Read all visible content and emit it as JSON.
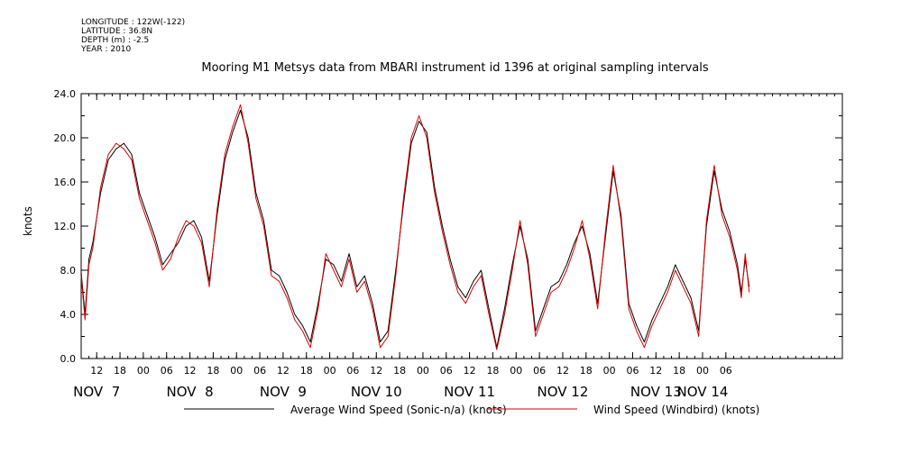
{
  "metadata": {
    "lines": [
      "LONGITUDE : 122W(-122)",
      "LATITUDE : 36.8N",
      "DEPTH (m) : -2.5",
      "YEAR : 2010"
    ]
  },
  "chart_data": {
    "type": "line",
    "title": "Mooring M1 Metsys data from MBARI instrument id 1396 at original sampling intervals",
    "ylabel": "knots",
    "xlabel": "",
    "ylim": [
      0,
      24
    ],
    "yticks": [
      "0.0",
      "4.0",
      "8.0",
      "12.0",
      "16.0",
      "20.0",
      "24.0"
    ],
    "x_range_hours_label": "Nov 6 08:00 to Nov 14 12:00 (hour ticks every 6 h)",
    "hour_tick_labels": [
      {
        "t": "Nov 6 12:00",
        "label": "12"
      },
      {
        "t": "Nov 6 18:00",
        "label": "18"
      },
      {
        "t": "Nov 7 00:00",
        "label": "00"
      },
      {
        "t": "Nov 7 06:00",
        "label": "06"
      },
      {
        "t": "Nov 7 12:00",
        "label": "12"
      },
      {
        "t": "Nov 7 18:00",
        "label": "18"
      },
      {
        "t": "Nov 8 00:00",
        "label": "00"
      },
      {
        "t": "Nov 8 06:00",
        "label": "06"
      },
      {
        "t": "Nov 8 12:00",
        "label": "12"
      },
      {
        "t": "Nov 8 18:00",
        "label": "18"
      },
      {
        "t": "Nov 9 00:00",
        "label": "00"
      },
      {
        "t": "Nov 9 06:00",
        "label": "06"
      },
      {
        "t": "Nov 9 12:00",
        "label": "12"
      },
      {
        "t": "Nov 9 18:00",
        "label": "18"
      },
      {
        "t": "Nov 10 00:00",
        "label": "00"
      },
      {
        "t": "Nov 10 06:00",
        "label": "06"
      },
      {
        "t": "Nov 10 12:00",
        "label": "12"
      },
      {
        "t": "Nov 10 18:00",
        "label": "18"
      },
      {
        "t": "Nov 11 00:00",
        "label": "00"
      },
      {
        "t": "Nov 11 06:00",
        "label": "06"
      },
      {
        "t": "Nov 11 12:00",
        "label": "12"
      },
      {
        "t": "Nov 11 18:00",
        "label": "18"
      },
      {
        "t": "Nov 12 00:00",
        "label": "00"
      },
      {
        "t": "Nov 12 06:00",
        "label": "06"
      },
      {
        "t": "Nov 12 12:00",
        "label": "12"
      },
      {
        "t": "Nov 12 18:00",
        "label": "18"
      },
      {
        "t": "Nov 13 00:00",
        "label": "00"
      },
      {
        "t": "Nov 13 06:00",
        "label": "06"
      }
    ],
    "day_labels": [
      {
        "t": "Nov 6 12:00",
        "label": "NOV  7"
      },
      {
        "t": "Nov 7 12:00",
        "label": "NOV  8"
      },
      {
        "t": "Nov 8 12:00",
        "label": "NOV  9"
      },
      {
        "t": "Nov 9 12:00",
        "label": "NOV 10"
      },
      {
        "t": "Nov 10 12:00",
        "label": "NOV 11"
      },
      {
        "t": "Nov 11 12:00",
        "label": "NOV 12"
      },
      {
        "t": "Nov 12 12:00",
        "label": "NOV 13"
      },
      {
        "t": "Nov 13 00:00",
        "label": "NOV 14"
      }
    ],
    "series": [
      {
        "name": "Average Wind Speed (Sonic-n/a) (knots)",
        "color": "#000000",
        "points": [
          [
            "Nov 6 08:00",
            7.8
          ],
          [
            "Nov 6 09:00",
            4.0
          ],
          [
            "Nov 6 10:00",
            9.0
          ],
          [
            "Nov 6 11:00",
            10.5
          ],
          [
            "Nov 6 13:00",
            15.0
          ],
          [
            "Nov 6 15:00",
            18.0
          ],
          [
            "Nov 6 17:00",
            19.0
          ],
          [
            "Nov 6 19:00",
            19.5
          ],
          [
            "Nov 6 21:00",
            18.5
          ],
          [
            "Nov 6 23:00",
            15.0
          ],
          [
            "Nov 7 01:00",
            13.0
          ],
          [
            "Nov 7 03:00",
            11.0
          ],
          [
            "Nov 7 05:00",
            8.5
          ],
          [
            "Nov 7 07:00",
            9.5
          ],
          [
            "Nov 7 09:00",
            10.5
          ],
          [
            "Nov 7 11:00",
            12.0
          ],
          [
            "Nov 7 13:00",
            12.5
          ],
          [
            "Nov 7 15:00",
            11.0
          ],
          [
            "Nov 7 17:00",
            7.0
          ],
          [
            "Nov 7 19:00",
            13.0
          ],
          [
            "Nov 7 21:00",
            18.0
          ],
          [
            "Nov 7 23:00",
            20.5
          ],
          [
            "Nov 8 01:00",
            22.5
          ],
          [
            "Nov 8 03:00",
            20.0
          ],
          [
            "Nov 8 05:00",
            15.0
          ],
          [
            "Nov 8 07:00",
            12.5
          ],
          [
            "Nov 8 09:00",
            8.0
          ],
          [
            "Nov 8 11:00",
            7.5
          ],
          [
            "Nov 8 13:00",
            6.0
          ],
          [
            "Nov 8 15:00",
            4.0
          ],
          [
            "Nov 8 17:00",
            3.0
          ],
          [
            "Nov 8 19:00",
            1.5
          ],
          [
            "Nov 8 21:00",
            5.0
          ],
          [
            "Nov 8 23:00",
            9.0
          ],
          [
            "Nov 9 01:00",
            8.5
          ],
          [
            "Nov 9 03:00",
            7.0
          ],
          [
            "Nov 9 05:00",
            9.5
          ],
          [
            "Nov 9 07:00",
            6.5
          ],
          [
            "Nov 9 09:00",
            7.5
          ],
          [
            "Nov 9 11:00",
            5.0
          ],
          [
            "Nov 9 13:00",
            1.5
          ],
          [
            "Nov 9 15:00",
            2.5
          ],
          [
            "Nov 9 17:00",
            8.0
          ],
          [
            "Nov 9 19:00",
            14.0
          ],
          [
            "Nov 9 21:00",
            19.5
          ],
          [
            "Nov 9 23:00",
            21.5
          ],
          [
            "Nov 10 01:00",
            20.5
          ],
          [
            "Nov 10 03:00",
            15.5
          ],
          [
            "Nov 10 05:00",
            12.0
          ],
          [
            "Nov 10 07:00",
            9.0
          ],
          [
            "Nov 10 09:00",
            6.5
          ],
          [
            "Nov 10 11:00",
            5.5
          ],
          [
            "Nov 10 13:00",
            7.0
          ],
          [
            "Nov 10 15:00",
            8.0
          ],
          [
            "Nov 10 17:00",
            4.5
          ],
          [
            "Nov 10 19:00",
            1.0
          ],
          [
            "Nov 10 21:00",
            4.5
          ],
          [
            "Nov 10 23:00",
            8.5
          ],
          [
            "Nov 11 01:00",
            12.0
          ],
          [
            "Nov 11 03:00",
            9.0
          ],
          [
            "Nov 11 05:00",
            2.5
          ],
          [
            "Nov 11 07:00",
            4.5
          ],
          [
            "Nov 11 09:00",
            6.5
          ],
          [
            "Nov 11 11:00",
            7.0
          ],
          [
            "Nov 11 13:00",
            8.5
          ],
          [
            "Nov 11 15:00",
            10.5
          ],
          [
            "Nov 11 17:00",
            12.0
          ],
          [
            "Nov 11 19:00",
            9.5
          ],
          [
            "Nov 11 21:00",
            5.0
          ],
          [
            "Nov 11 23:00",
            11.0
          ],
          [
            "Nov 12 01:00",
            17.0
          ],
          [
            "Nov 12 03:00",
            13.0
          ],
          [
            "Nov 12 05:00",
            5.0
          ],
          [
            "Nov 12 07:00",
            3.0
          ],
          [
            "Nov 12 09:00",
            1.5
          ],
          [
            "Nov 12 11:00",
            3.5
          ],
          [
            "Nov 12 13:00",
            5.0
          ],
          [
            "Nov 12 15:00",
            6.5
          ],
          [
            "Nov 12 17:00",
            8.5
          ],
          [
            "Nov 12 19:00",
            7.0
          ],
          [
            "Nov 12 21:00",
            5.5
          ],
          [
            "Nov 12 23:00",
            2.5
          ],
          [
            "Nov 13 01:00",
            12.0
          ],
          [
            "Nov 13 03:00",
            17.0
          ],
          [
            "Nov 13 05:00",
            13.5
          ],
          [
            "Nov 13 07:00",
            11.5
          ],
          [
            "Nov 13 09:00",
            8.5
          ],
          [
            "Nov 13 10:00",
            6.0
          ],
          [
            "Nov 13 11:00",
            9.0
          ],
          [
            "Nov 13 12:00",
            6.5
          ]
        ]
      },
      {
        "name": "Wind Speed (Windbird) (knots)",
        "color": "#dd0000",
        "points": [
          [
            "Nov 6 08:00",
            7.5
          ],
          [
            "Nov 6 09:00",
            3.5
          ],
          [
            "Nov 6 10:00",
            8.5
          ],
          [
            "Nov 6 11:00",
            10.0
          ],
          [
            "Nov 6 13:00",
            15.5
          ],
          [
            "Nov 6 15:00",
            18.5
          ],
          [
            "Nov 6 17:00",
            19.5
          ],
          [
            "Nov 6 19:00",
            19.0
          ],
          [
            "Nov 6 21:00",
            18.0
          ],
          [
            "Nov 6 23:00",
            14.5
          ],
          [
            "Nov 7 01:00",
            12.5
          ],
          [
            "Nov 7 03:00",
            10.5
          ],
          [
            "Nov 7 05:00",
            8.0
          ],
          [
            "Nov 7 07:00",
            9.0
          ],
          [
            "Nov 7 09:00",
            11.0
          ],
          [
            "Nov 7 11:00",
            12.5
          ],
          [
            "Nov 7 13:00",
            12.0
          ],
          [
            "Nov 7 15:00",
            10.5
          ],
          [
            "Nov 7 17:00",
            6.5
          ],
          [
            "Nov 7 19:00",
            13.5
          ],
          [
            "Nov 7 21:00",
            18.5
          ],
          [
            "Nov 7 23:00",
            21.0
          ],
          [
            "Nov 8 01:00",
            23.0
          ],
          [
            "Nov 8 03:00",
            19.5
          ],
          [
            "Nov 8 05:00",
            14.5
          ],
          [
            "Nov 8 07:00",
            12.0
          ],
          [
            "Nov 8 09:00",
            7.5
          ],
          [
            "Nov 8 11:00",
            7.0
          ],
          [
            "Nov 8 13:00",
            5.5
          ],
          [
            "Nov 8 15:00",
            3.5
          ],
          [
            "Nov 8 17:00",
            2.5
          ],
          [
            "Nov 8 19:00",
            1.0
          ],
          [
            "Nov 8 21:00",
            4.5
          ],
          [
            "Nov 8 23:00",
            9.5
          ],
          [
            "Nov 9 01:00",
            8.0
          ],
          [
            "Nov 9 03:00",
            6.5
          ],
          [
            "Nov 9 05:00",
            9.0
          ],
          [
            "Nov 9 07:00",
            6.0
          ],
          [
            "Nov 9 09:00",
            7.0
          ],
          [
            "Nov 9 11:00",
            4.5
          ],
          [
            "Nov 9 13:00",
            1.0
          ],
          [
            "Nov 9 15:00",
            2.0
          ],
          [
            "Nov 9 17:00",
            7.5
          ],
          [
            "Nov 9 19:00",
            14.5
          ],
          [
            "Nov 9 21:00",
            20.0
          ],
          [
            "Nov 9 23:00",
            22.0
          ],
          [
            "Nov 10 01:00",
            20.0
          ],
          [
            "Nov 10 03:00",
            15.0
          ],
          [
            "Nov 10 05:00",
            11.5
          ],
          [
            "Nov 10 07:00",
            8.5
          ],
          [
            "Nov 10 09:00",
            6.0
          ],
          [
            "Nov 10 11:00",
            5.0
          ],
          [
            "Nov 10 13:00",
            6.5
          ],
          [
            "Nov 10 15:00",
            7.5
          ],
          [
            "Nov 10 17:00",
            4.0
          ],
          [
            "Nov 10 19:00",
            0.8
          ],
          [
            "Nov 10 21:00",
            4.0
          ],
          [
            "Nov 10 23:00",
            8.0
          ],
          [
            "Nov 11 01:00",
            12.5
          ],
          [
            "Nov 11 03:00",
            8.5
          ],
          [
            "Nov 11 05:00",
            2.0
          ],
          [
            "Nov 11 07:00",
            4.0
          ],
          [
            "Nov 11 09:00",
            6.0
          ],
          [
            "Nov 11 11:00",
            6.5
          ],
          [
            "Nov 11 13:00",
            8.0
          ],
          [
            "Nov 11 15:00",
            10.0
          ],
          [
            "Nov 11 17:00",
            12.5
          ],
          [
            "Nov 11 19:00",
            9.0
          ],
          [
            "Nov 11 21:00",
            4.5
          ],
          [
            "Nov 11 23:00",
            11.5
          ],
          [
            "Nov 12 01:00",
            17.5
          ],
          [
            "Nov 12 03:00",
            12.5
          ],
          [
            "Nov 12 05:00",
            4.5
          ],
          [
            "Nov 12 07:00",
            2.5
          ],
          [
            "Nov 12 09:00",
            1.0
          ],
          [
            "Nov 12 11:00",
            3.0
          ],
          [
            "Nov 12 13:00",
            4.5
          ],
          [
            "Nov 12 15:00",
            6.0
          ],
          [
            "Nov 12 17:00",
            8.0
          ],
          [
            "Nov 12 19:00",
            6.5
          ],
          [
            "Nov 12 21:00",
            5.0
          ],
          [
            "Nov 12 23:00",
            2.0
          ],
          [
            "Nov 13 01:00",
            12.5
          ],
          [
            "Nov 13 03:00",
            17.5
          ],
          [
            "Nov 13 05:00",
            13.0
          ],
          [
            "Nov 13 07:00",
            11.0
          ],
          [
            "Nov 13 09:00",
            8.0
          ],
          [
            "Nov 13 10:00",
            5.5
          ],
          [
            "Nov 13 11:00",
            9.5
          ],
          [
            "Nov 13 12:00",
            6.0
          ]
        ]
      }
    ],
    "grid": false,
    "legend_placement": "bottom"
  }
}
